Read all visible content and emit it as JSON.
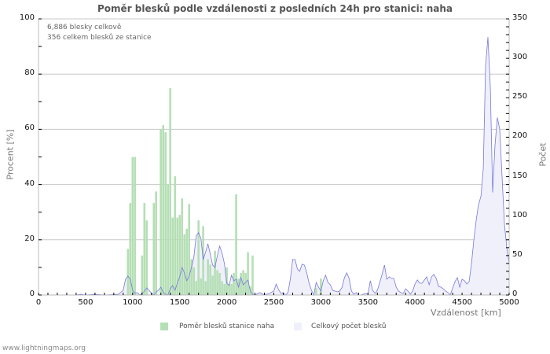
{
  "title": "Poměr blesků podle vzdálenosti z posledních 24h pro stanici: naha",
  "info": {
    "line1": "6,886 blesky celkově",
    "line2": "356 celkem blesků ze stanice"
  },
  "legend": {
    "item1": "Poměr blesků stanice naha",
    "item2": "Celkový počet blesků"
  },
  "footer": "www.lightningmaps.org",
  "colors": {
    "bar": "#b5dfb5",
    "line": "#7777dd",
    "area": "#f0f0fb",
    "grid": "#c8c8c8"
  },
  "chart_data": {
    "type": "bar+area",
    "title": "Poměr blesků podle vzdálenosti z posledních 24h pro stanici: naha",
    "xlabel": "Vzdálenost   [km]",
    "ylabel_left": "Procent   [%]",
    "ylabel_right": "Počet",
    "xlim": [
      0,
      5000
    ],
    "ylim_left": [
      0,
      100
    ],
    "ylim_right": [
      0,
      350
    ],
    "x_ticks": [
      "0",
      "500",
      "1000",
      "1500",
      "2000",
      "2500",
      "3000",
      "3500",
      "4000",
      "4500",
      "5000"
    ],
    "y_ticks_left": [
      "0",
      "20",
      "40",
      "60",
      "80",
      "100"
    ],
    "y_ticks_right": [
      "0",
      "50",
      "100",
      "150",
      "200",
      "250",
      "300",
      "350"
    ],
    "grid": true,
    "legend_position": "bottom",
    "series": [
      {
        "name": "Poměr blesků stanice naha",
        "axis": "left",
        "type": "bar",
        "points": [
          [
            950,
            16.7
          ],
          [
            975,
            33.3
          ],
          [
            1000,
            50
          ],
          [
            1025,
            50
          ],
          [
            1100,
            14.3
          ],
          [
            1125,
            33.3
          ],
          [
            1150,
            27
          ],
          [
            1225,
            33.3
          ],
          [
            1250,
            37.5
          ],
          [
            1300,
            60
          ],
          [
            1325,
            61.5
          ],
          [
            1350,
            59
          ],
          [
            1375,
            40
          ],
          [
            1400,
            75
          ],
          [
            1425,
            28
          ],
          [
            1450,
            43
          ],
          [
            1475,
            28
          ],
          [
            1500,
            29
          ],
          [
            1525,
            35
          ],
          [
            1550,
            22
          ],
          [
            1575,
            24
          ],
          [
            1600,
            33
          ],
          [
            1625,
            13
          ],
          [
            1650,
            10
          ],
          [
            1675,
            5
          ],
          [
            1700,
            27
          ],
          [
            1725,
            6
          ],
          [
            1750,
            25
          ],
          [
            1775,
            5
          ],
          [
            1800,
            13
          ],
          [
            1825,
            11
          ],
          [
            1850,
            7
          ],
          [
            1875,
            16
          ],
          [
            1900,
            9
          ],
          [
            1925,
            8
          ],
          [
            1950,
            5
          ],
          [
            1975,
            4
          ],
          [
            2000,
            10
          ],
          [
            2025,
            4
          ],
          [
            2050,
            4
          ],
          [
            2075,
            8
          ],
          [
            2100,
            36.5
          ],
          [
            2125,
            6
          ],
          [
            2150,
            8
          ],
          [
            2175,
            9
          ],
          [
            2200,
            8
          ],
          [
            2225,
            15.5
          ],
          [
            2250,
            3
          ],
          [
            2275,
            14.3
          ],
          [
            2950,
            2.5
          ],
          [
            3000,
            6
          ]
        ]
      },
      {
        "name": "Celkový počet blesků",
        "axis": "right",
        "type": "area",
        "points": [
          [
            0,
            0
          ],
          [
            400,
            0
          ],
          [
            450,
            1
          ],
          [
            500,
            0
          ],
          [
            600,
            1
          ],
          [
            700,
            0
          ],
          [
            850,
            1
          ],
          [
            900,
            6
          ],
          [
            925,
            20
          ],
          [
            950,
            24
          ],
          [
            975,
            20
          ],
          [
            1000,
            6
          ],
          [
            1025,
            2
          ],
          [
            1050,
            3
          ],
          [
            1075,
            0
          ],
          [
            1100,
            2
          ],
          [
            1125,
            5
          ],
          [
            1150,
            9
          ],
          [
            1175,
            6
          ],
          [
            1200,
            2
          ],
          [
            1225,
            0
          ],
          [
            1250,
            4
          ],
          [
            1275,
            6
          ],
          [
            1300,
            10
          ],
          [
            1325,
            3
          ],
          [
            1350,
            1
          ],
          [
            1375,
            0
          ],
          [
            1400,
            8
          ],
          [
            1425,
            12
          ],
          [
            1450,
            6
          ],
          [
            1475,
            15
          ],
          [
            1500,
            23
          ],
          [
            1525,
            35
          ],
          [
            1550,
            28
          ],
          [
            1575,
            18
          ],
          [
            1600,
            24
          ],
          [
            1625,
            35
          ],
          [
            1650,
            48
          ],
          [
            1675,
            75
          ],
          [
            1700,
            79
          ],
          [
            1725,
            72
          ],
          [
            1750,
            45
          ],
          [
            1775,
            54
          ],
          [
            1800,
            65
          ],
          [
            1825,
            52
          ],
          [
            1850,
            38
          ],
          [
            1875,
            35
          ],
          [
            1900,
            50
          ],
          [
            1925,
            62
          ],
          [
            1950,
            53
          ],
          [
            1975,
            40
          ],
          [
            2000,
            15
          ],
          [
            2025,
            12
          ],
          [
            2050,
            25
          ],
          [
            2075,
            18
          ],
          [
            2100,
            20
          ],
          [
            2125,
            10
          ],
          [
            2150,
            22
          ],
          [
            2175,
            13
          ],
          [
            2200,
            16
          ],
          [
            2225,
            19
          ],
          [
            2250,
            5
          ],
          [
            2275,
            1
          ],
          [
            2300,
            0
          ],
          [
            2350,
            3
          ],
          [
            2400,
            0
          ],
          [
            2450,
            2
          ],
          [
            2500,
            5
          ],
          [
            2525,
            14
          ],
          [
            2550,
            7
          ],
          [
            2575,
            2
          ],
          [
            2600,
            3
          ],
          [
            2625,
            0
          ],
          [
            2650,
            3
          ],
          [
            2675,
            20
          ],
          [
            2700,
            45
          ],
          [
            2725,
            45
          ],
          [
            2750,
            33
          ],
          [
            2775,
            30
          ],
          [
            2800,
            39
          ],
          [
            2825,
            38
          ],
          [
            2850,
            28
          ],
          [
            2875,
            15
          ],
          [
            2900,
            6
          ],
          [
            2925,
            0
          ],
          [
            2950,
            16
          ],
          [
            2975,
            10
          ],
          [
            3000,
            5
          ],
          [
            3025,
            18
          ],
          [
            3050,
            25
          ],
          [
            3075,
            16
          ],
          [
            3100,
            13
          ],
          [
            3125,
            6
          ],
          [
            3150,
            5
          ],
          [
            3175,
            4
          ],
          [
            3200,
            5
          ],
          [
            3225,
            10
          ],
          [
            3250,
            22
          ],
          [
            3275,
            28
          ],
          [
            3300,
            21
          ],
          [
            3325,
            5
          ],
          [
            3350,
            1
          ],
          [
            3375,
            3
          ],
          [
            3400,
            0
          ],
          [
            3425,
            0
          ],
          [
            3450,
            1
          ],
          [
            3475,
            2
          ],
          [
            3500,
            1
          ],
          [
            3525,
            18
          ],
          [
            3550,
            6
          ],
          [
            3575,
            2
          ],
          [
            3600,
            6
          ],
          [
            3625,
            16
          ],
          [
            3650,
            26
          ],
          [
            3675,
            38
          ],
          [
            3700,
            20
          ],
          [
            3725,
            23
          ],
          [
            3750,
            21
          ],
          [
            3775,
            21
          ],
          [
            3800,
            10
          ],
          [
            3825,
            5
          ],
          [
            3850,
            3
          ],
          [
            3875,
            2
          ],
          [
            3900,
            8
          ],
          [
            3925,
            5
          ],
          [
            3950,
            1
          ],
          [
            3975,
            5
          ],
          [
            4000,
            14
          ],
          [
            4025,
            19
          ],
          [
            4050,
            15
          ],
          [
            4075,
            15
          ],
          [
            4100,
            19
          ],
          [
            4125,
            23
          ],
          [
            4150,
            13
          ],
          [
            4175,
            23
          ],
          [
            4200,
            26
          ],
          [
            4225,
            21
          ],
          [
            4250,
            11
          ],
          [
            4275,
            10
          ],
          [
            4300,
            8
          ],
          [
            4325,
            5
          ],
          [
            4350,
            3
          ],
          [
            4375,
            0
          ],
          [
            4400,
            9
          ],
          [
            4425,
            17
          ],
          [
            4450,
            22
          ],
          [
            4475,
            10
          ],
          [
            4500,
            20
          ],
          [
            4525,
            18
          ],
          [
            4550,
            14
          ],
          [
            4575,
            17
          ],
          [
            4600,
            40
          ],
          [
            4625,
            70
          ],
          [
            4650,
            95
          ],
          [
            4675,
            115
          ],
          [
            4700,
            125
          ],
          [
            4725,
            160
          ],
          [
            4750,
            290
          ],
          [
            4775,
            327
          ],
          [
            4800,
            265
          ],
          [
            4825,
            130
          ],
          [
            4850,
            190
          ],
          [
            4875,
            225
          ],
          [
            4900,
            210
          ],
          [
            4925,
            150
          ],
          [
            4950,
            90
          ],
          [
            4975,
            60
          ],
          [
            5000,
            40
          ]
        ]
      }
    ]
  }
}
